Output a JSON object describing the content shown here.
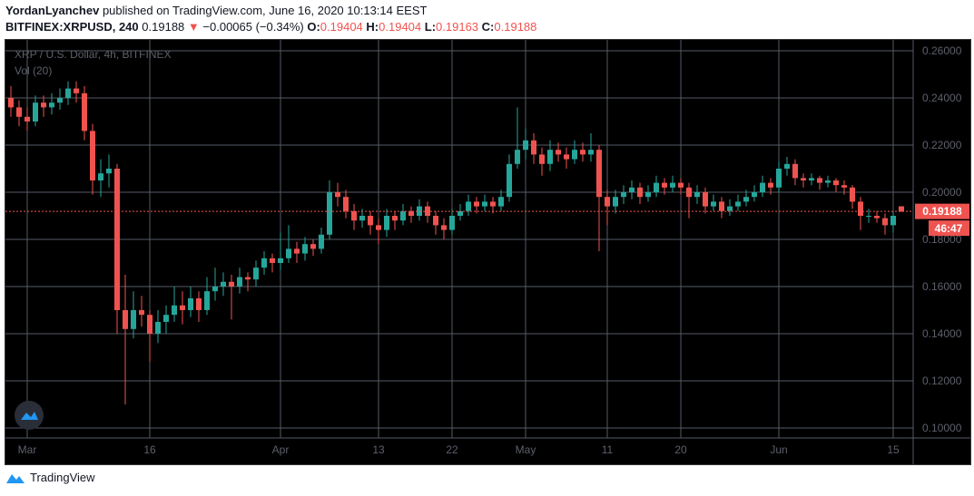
{
  "header": {
    "author": "YordanLyanchev",
    "published": "published on TradingView.com, June 16, 2020 10:13:14 EEST",
    "symbol": "BITFINEX:XRPUSD, 240",
    "last": "0.19188",
    "change": "−0.00065 (−0.34%)",
    "o_label": "O:",
    "o": "0.19404",
    "h_label": "H:",
    "h": "0.19404",
    "l_label": "L:",
    "l": "0.19163",
    "c_label": "C:",
    "c": "0.19188"
  },
  "footer": {
    "brand": "TradingView"
  },
  "colors": {
    "up": "#26a69a",
    "down": "#ef5350",
    "grid": "#555a66",
    "bg": "#000000"
  },
  "chart_data": {
    "type": "candlestick",
    "title": "XRP / U.S. Dollar, 4h, BITFINEX",
    "indicator": "Vol (20)",
    "ylim": [
      0.095,
      0.262
    ],
    "yticks": [
      "0.26000",
      "0.24000",
      "0.22000",
      "0.20000",
      "0.18000",
      "0.16000",
      "0.14000",
      "0.12000",
      "0.10000"
    ],
    "xticks": [
      {
        "label": "Mar",
        "date": "Mar 1"
      },
      {
        "label": "16",
        "date": "Mar 16"
      },
      {
        "label": "Apr",
        "date": "Apr 1"
      },
      {
        "label": "13",
        "date": "Apr 13"
      },
      {
        "label": "22",
        "date": "Apr 22"
      },
      {
        "label": "May",
        "date": "May 1"
      },
      {
        "label": "11",
        "date": "May 11"
      },
      {
        "label": "20",
        "date": "May 20"
      },
      {
        "label": "Jun",
        "date": "Jun 1"
      },
      {
        "label": "15",
        "date": "Jun 15"
      }
    ],
    "last_price": "0.19188",
    "countdown": "46:47",
    "grid": true,
    "columns": [
      "date",
      "open",
      "high",
      "low",
      "close"
    ],
    "candles": [
      [
        "Feb 28",
        0.24,
        0.245,
        0.232,
        0.236
      ],
      [
        "Feb 29",
        0.236,
        0.239,
        0.228,
        0.232
      ],
      [
        "Mar 1",
        0.232,
        0.236,
        0.226,
        0.23
      ],
      [
        "Mar 2",
        0.23,
        0.241,
        0.228,
        0.238
      ],
      [
        "Mar 3",
        0.238,
        0.241,
        0.232,
        0.236
      ],
      [
        "Mar 4",
        0.236,
        0.242,
        0.233,
        0.238
      ],
      [
        "Mar 5",
        0.238,
        0.244,
        0.235,
        0.24
      ],
      [
        "Mar 6",
        0.24,
        0.247,
        0.237,
        0.244
      ],
      [
        "Mar 7",
        0.244,
        0.247,
        0.238,
        0.242
      ],
      [
        "Mar 8",
        0.242,
        0.245,
        0.222,
        0.226
      ],
      [
        "Mar 9",
        0.226,
        0.229,
        0.199,
        0.205
      ],
      [
        "Mar 10",
        0.205,
        0.214,
        0.198,
        0.208
      ],
      [
        "Mar 11",
        0.208,
        0.216,
        0.202,
        0.21
      ],
      [
        "Mar 12",
        0.21,
        0.212,
        0.14,
        0.15
      ],
      [
        "Mar 13",
        0.15,
        0.165,
        0.11,
        0.142
      ],
      [
        "Mar 14",
        0.142,
        0.158,
        0.138,
        0.15
      ],
      [
        "Mar 15",
        0.15,
        0.156,
        0.143,
        0.148
      ],
      [
        "Mar 16",
        0.148,
        0.15,
        0.128,
        0.14
      ],
      [
        "Mar 17",
        0.14,
        0.15,
        0.136,
        0.145
      ],
      [
        "Mar 18",
        0.145,
        0.152,
        0.14,
        0.148
      ],
      [
        "Mar 19",
        0.148,
        0.16,
        0.145,
        0.152
      ],
      [
        "Mar 20",
        0.152,
        0.158,
        0.144,
        0.15
      ],
      [
        "Mar 21",
        0.15,
        0.16,
        0.147,
        0.155
      ],
      [
        "Mar 22",
        0.155,
        0.158,
        0.145,
        0.15
      ],
      [
        "Mar 23",
        0.15,
        0.164,
        0.148,
        0.158
      ],
      [
        "Mar 24",
        0.158,
        0.168,
        0.154,
        0.16
      ],
      [
        "Mar 25",
        0.16,
        0.166,
        0.156,
        0.162
      ],
      [
        "Mar 26",
        0.162,
        0.165,
        0.146,
        0.16
      ],
      [
        "Mar 27",
        0.16,
        0.168,
        0.157,
        0.164
      ],
      [
        "Mar 28",
        0.164,
        0.166,
        0.158,
        0.163
      ],
      [
        "Mar 29",
        0.163,
        0.171,
        0.16,
        0.168
      ],
      [
        "Mar 30",
        0.168,
        0.175,
        0.165,
        0.172
      ],
      [
        "Mar 31",
        0.172,
        0.174,
        0.166,
        0.17
      ],
      [
        "Apr 1",
        0.17,
        0.183,
        0.167,
        0.172
      ],
      [
        "Apr 2",
        0.172,
        0.186,
        0.17,
        0.176
      ],
      [
        "Apr 3",
        0.176,
        0.179,
        0.17,
        0.174
      ],
      [
        "Apr 4",
        0.174,
        0.181,
        0.171,
        0.178
      ],
      [
        "Apr 5",
        0.178,
        0.18,
        0.173,
        0.176
      ],
      [
        "Apr 6",
        0.176,
        0.185,
        0.174,
        0.182
      ],
      [
        "Apr 7",
        0.182,
        0.205,
        0.18,
        0.2
      ],
      [
        "Apr 8",
        0.2,
        0.204,
        0.194,
        0.198
      ],
      [
        "Apr 9",
        0.198,
        0.201,
        0.189,
        0.192
      ],
      [
        "Apr 10",
        0.192,
        0.195,
        0.184,
        0.188
      ],
      [
        "Apr 11",
        0.188,
        0.193,
        0.185,
        0.19
      ],
      [
        "Apr 12",
        0.19,
        0.192,
        0.182,
        0.186
      ],
      [
        "Apr 13",
        0.186,
        0.189,
        0.178,
        0.184
      ],
      [
        "Apr 14",
        0.184,
        0.193,
        0.181,
        0.19
      ],
      [
        "Apr 15",
        0.19,
        0.192,
        0.184,
        0.188
      ],
      [
        "Apr 16",
        0.188,
        0.195,
        0.186,
        0.192
      ],
      [
        "Apr 17",
        0.192,
        0.194,
        0.187,
        0.19
      ],
      [
        "Apr 18",
        0.19,
        0.197,
        0.188,
        0.194
      ],
      [
        "Apr 19",
        0.194,
        0.196,
        0.187,
        0.19
      ],
      [
        "Apr 20",
        0.19,
        0.192,
        0.182,
        0.186
      ],
      [
        "Apr 21",
        0.186,
        0.189,
        0.18,
        0.184
      ],
      [
        "Apr 22",
        0.184,
        0.193,
        0.182,
        0.19
      ],
      [
        "Apr 23",
        0.19,
        0.195,
        0.188,
        0.192
      ],
      [
        "Apr 24",
        0.192,
        0.199,
        0.19,
        0.196
      ],
      [
        "Apr 25",
        0.196,
        0.198,
        0.191,
        0.194
      ],
      [
        "Apr 26",
        0.194,
        0.199,
        0.192,
        0.196
      ],
      [
        "Apr 27",
        0.196,
        0.198,
        0.191,
        0.194
      ],
      [
        "Apr 28",
        0.194,
        0.201,
        0.192,
        0.198
      ],
      [
        "Apr 29",
        0.198,
        0.216,
        0.196,
        0.212
      ],
      [
        "Apr 30",
        0.212,
        0.236,
        0.21,
        0.218
      ],
      [
        "May 1",
        0.218,
        0.227,
        0.214,
        0.222
      ],
      [
        "May 2",
        0.222,
        0.225,
        0.212,
        0.216
      ],
      [
        "May 3",
        0.216,
        0.219,
        0.207,
        0.212
      ],
      [
        "May 4",
        0.212,
        0.222,
        0.209,
        0.218
      ],
      [
        "May 5",
        0.218,
        0.221,
        0.213,
        0.216
      ],
      [
        "May 6",
        0.216,
        0.219,
        0.21,
        0.214
      ],
      [
        "May 7",
        0.214,
        0.222,
        0.212,
        0.218
      ],
      [
        "May 8",
        0.218,
        0.221,
        0.213,
        0.216
      ],
      [
        "May 9",
        0.216,
        0.225,
        0.213,
        0.218
      ],
      [
        "May 10",
        0.218,
        0.22,
        0.175,
        0.198
      ],
      [
        "May 11",
        0.198,
        0.201,
        0.186,
        0.194
      ],
      [
        "May 12",
        0.194,
        0.201,
        0.191,
        0.198
      ],
      [
        "May 13",
        0.198,
        0.203,
        0.195,
        0.2
      ],
      [
        "May 14",
        0.2,
        0.205,
        0.197,
        0.202
      ],
      [
        "May 15",
        0.202,
        0.204,
        0.195,
        0.198
      ],
      [
        "May 16",
        0.198,
        0.203,
        0.196,
        0.2
      ],
      [
        "May 17",
        0.2,
        0.207,
        0.198,
        0.204
      ],
      [
        "May 18",
        0.204,
        0.206,
        0.199,
        0.202
      ],
      [
        "May 19",
        0.202,
        0.207,
        0.2,
        0.204
      ],
      [
        "May 20",
        0.204,
        0.206,
        0.199,
        0.202
      ],
      [
        "May 21",
        0.202,
        0.204,
        0.189,
        0.198
      ],
      [
        "May 22",
        0.198,
        0.203,
        0.195,
        0.2
      ],
      [
        "May 23",
        0.2,
        0.202,
        0.191,
        0.194
      ],
      [
        "May 24",
        0.194,
        0.199,
        0.192,
        0.196
      ],
      [
        "May 25",
        0.196,
        0.198,
        0.189,
        0.192
      ],
      [
        "May 26",
        0.192,
        0.197,
        0.19,
        0.194
      ],
      [
        "May 27",
        0.194,
        0.199,
        0.192,
        0.196
      ],
      [
        "May 28",
        0.196,
        0.201,
        0.194,
        0.198
      ],
      [
        "May 29",
        0.198,
        0.203,
        0.196,
        0.2
      ],
      [
        "May 30",
        0.2,
        0.207,
        0.198,
        0.204
      ],
      [
        "May 31",
        0.204,
        0.206,
        0.199,
        0.202
      ],
      [
        "Jun 1",
        0.202,
        0.213,
        0.2,
        0.21
      ],
      [
        "Jun 2",
        0.21,
        0.215,
        0.207,
        0.212
      ],
      [
        "Jun 3",
        0.212,
        0.214,
        0.203,
        0.206
      ],
      [
        "Jun 4",
        0.206,
        0.208,
        0.202,
        0.205
      ],
      [
        "Jun 5",
        0.205,
        0.208,
        0.203,
        0.206
      ],
      [
        "Jun 6",
        0.206,
        0.207,
        0.201,
        0.204
      ],
      [
        "Jun 7",
        0.204,
        0.207,
        0.202,
        0.205
      ],
      [
        "Jun 8",
        0.205,
        0.206,
        0.2,
        0.203
      ],
      [
        "Jun 9",
        0.203,
        0.205,
        0.199,
        0.202
      ],
      [
        "Jun 10",
        0.202,
        0.203,
        0.193,
        0.196
      ],
      [
        "Jun 11",
        0.196,
        0.198,
        0.184,
        0.19
      ],
      [
        "Jun 12",
        0.19,
        0.193,
        0.187,
        0.19
      ],
      [
        "Jun 13",
        0.19,
        0.192,
        0.187,
        0.189
      ],
      [
        "Jun 14",
        0.189,
        0.191,
        0.182,
        0.186
      ],
      [
        "Jun 15",
        0.186,
        0.192,
        0.183,
        0.19
      ],
      [
        "Jun 16",
        0.19404,
        0.19404,
        0.19163,
        0.19188
      ]
    ]
  }
}
